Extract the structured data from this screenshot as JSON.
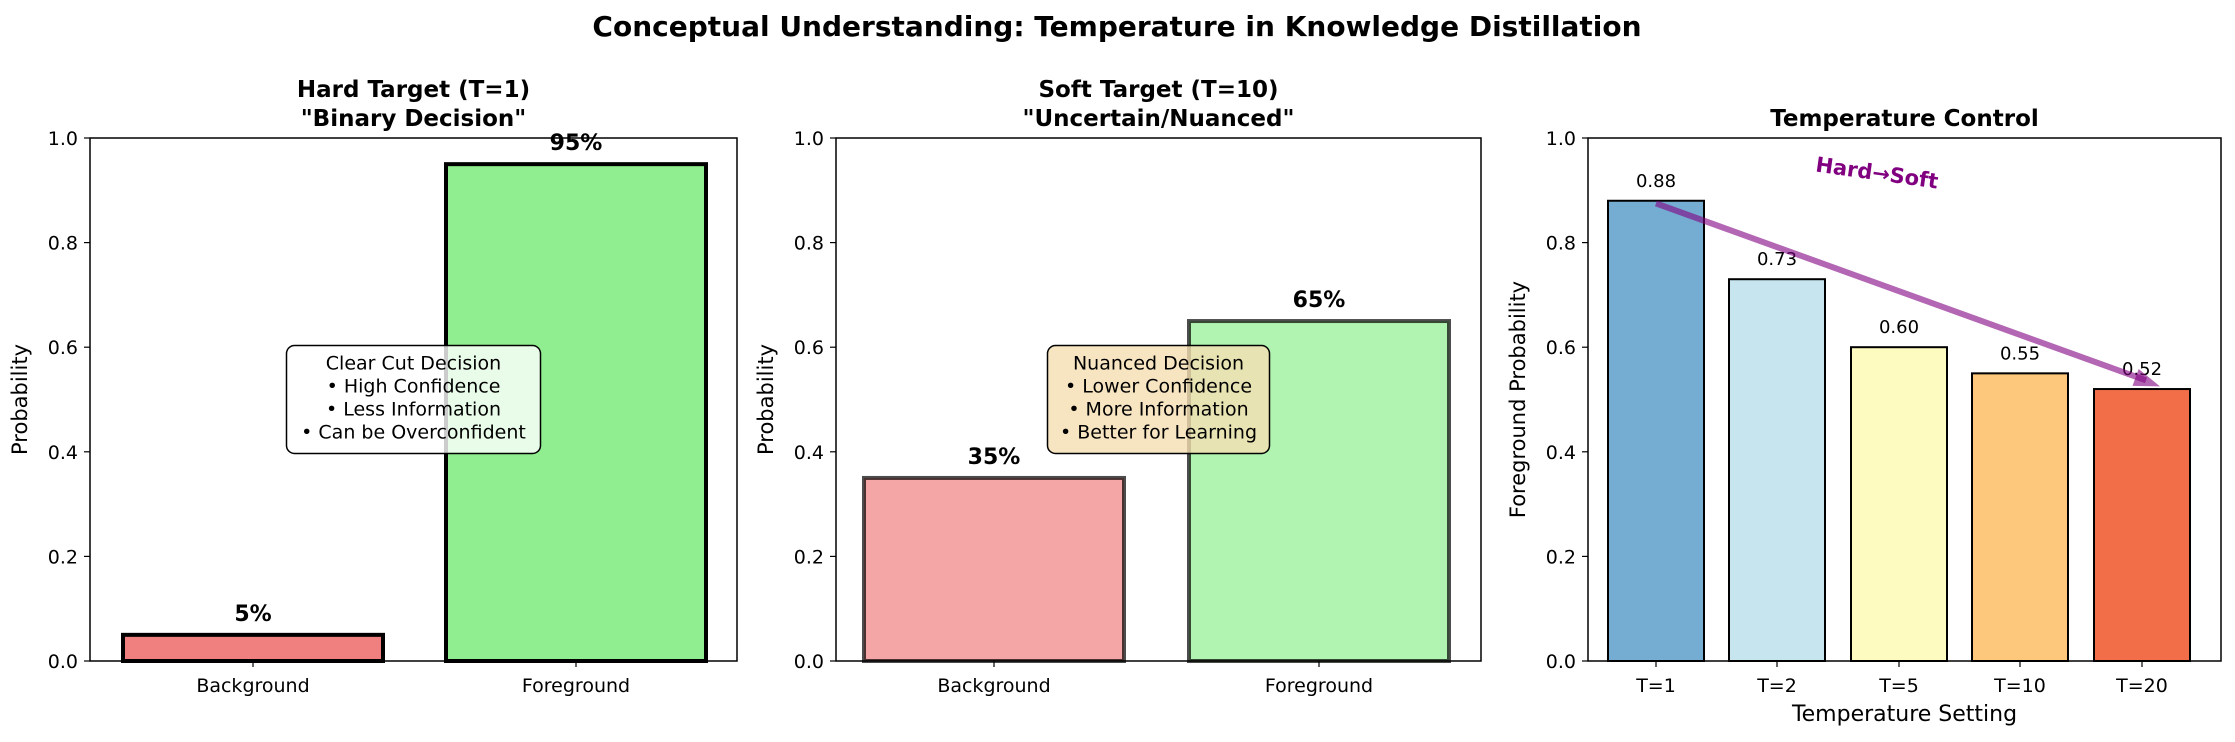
{
  "figure": {
    "suptitle": "Conceptual Understanding: Temperature in Knowledge Distillation"
  },
  "chart_data": [
    {
      "type": "bar",
      "title_lines": [
        "Hard Target (T=1)",
        "\"Binary Decision\""
      ],
      "xlabel": "",
      "ylabel": "Probability",
      "ylim": [
        0,
        1.0
      ],
      "yticks": [
        "0.0",
        "0.2",
        "0.4",
        "0.6",
        "0.8",
        "1.0"
      ],
      "categories": [
        "Background",
        "Foreground"
      ],
      "values": [
        0.05,
        0.95
      ],
      "value_labels": [
        "5%",
        "95%"
      ],
      "bar_colors": [
        "#f08080",
        "#90ee90"
      ],
      "bar_alpha": 1.0,
      "edge_color": "#000000",
      "annotation": {
        "lines": [
          "Clear Cut Decision",
          "• High Confidence",
          "• Less Information",
          "• Can be Overconfident"
        ],
        "background": "#ffffff"
      }
    },
    {
      "type": "bar",
      "title_lines": [
        "Soft Target (T=10)",
        "\"Uncertain/Nuanced\""
      ],
      "xlabel": "",
      "ylabel": "Probability",
      "ylim": [
        0,
        1.0
      ],
      "yticks": [
        "0.0",
        "0.2",
        "0.4",
        "0.6",
        "0.8",
        "1.0"
      ],
      "categories": [
        "Background",
        "Foreground"
      ],
      "values": [
        0.35,
        0.65
      ],
      "value_labels": [
        "35%",
        "65%"
      ],
      "bar_colors": [
        "#f08080",
        "#90ee90"
      ],
      "bar_alpha": 0.7,
      "edge_color": "#000000",
      "annotation": {
        "lines": [
          "Nuanced Decision",
          "• Lower Confidence",
          "• More Information",
          "• Better for Learning"
        ],
        "background": "#f5deb3"
      }
    },
    {
      "type": "bar",
      "title_lines": [
        "Temperature Control"
      ],
      "xlabel": "Temperature Setting",
      "ylabel": "Foreground Probability",
      "ylim": [
        0,
        1.0
      ],
      "yticks": [
        "0.0",
        "0.2",
        "0.4",
        "0.6",
        "0.8",
        "1.0"
      ],
      "categories": [
        "T=1",
        "T=2",
        "T=5",
        "T=10",
        "T=20"
      ],
      "values": [
        0.88,
        0.73,
        0.6,
        0.55,
        0.52
      ],
      "value_labels": [
        "0.88",
        "0.73",
        "0.60",
        "0.55",
        "0.52"
      ],
      "bar_colors": [
        "#74add1",
        "#c6e5ef",
        "#fefbc0",
        "#fdc87c",
        "#f26e48"
      ],
      "bar_alpha": 1.0,
      "edge_color": "#000000",
      "arrow": {
        "label": "Hard→Soft",
        "color": "#800080",
        "from": [
          0,
          0.875
        ],
        "to": [
          4,
          0.55
        ]
      }
    }
  ]
}
